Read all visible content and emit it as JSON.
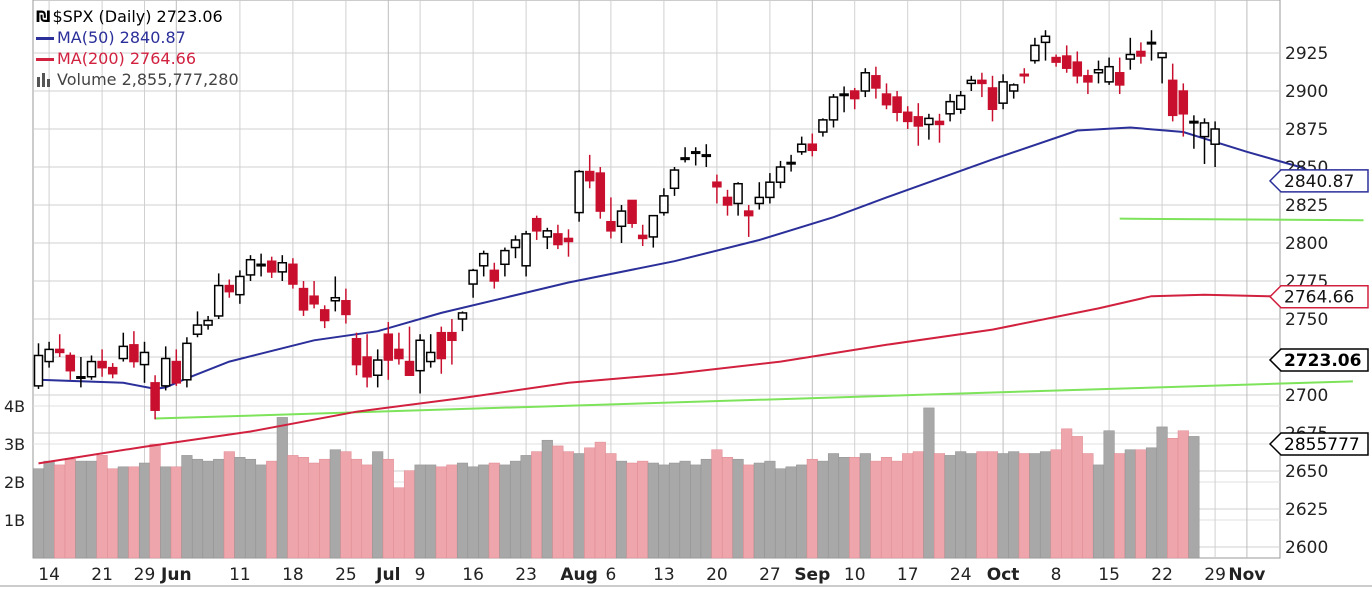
{
  "legend": {
    "symbol_line": "$SPX (Daily) 2723.06",
    "ma50_line": "MA(50) 2840.87",
    "ma200_line": "MA(200) 2764.66",
    "volume_line": "Volume 2,855,777,280"
  },
  "colors": {
    "up_candle": "#000000",
    "down_candle": "#c8102e",
    "ma50": "#2b2f99",
    "ma200": "#d1213f",
    "volume_up": "#a8a8a8",
    "volume_down": "#eea5ab",
    "trendline": "#7de35a",
    "grid": "#d0d0d0"
  },
  "chart_data": {
    "type": "candlestick",
    "title": "$SPX (Daily) 2723.06",
    "price_ylim": [
      2600,
      2940
    ],
    "price_ticks": [
      2600,
      2625,
      2650,
      2675,
      2700,
      2725,
      2750,
      2775,
      2800,
      2825,
      2850,
      2875,
      2900,
      2925
    ],
    "volume_ticks": [
      {
        "label": "1B",
        "value": 1
      },
      {
        "label": "2B",
        "value": 2
      },
      {
        "label": "3B",
        "value": 3
      },
      {
        "label": "4B",
        "value": 4
      }
    ],
    "x_tick_labels": [
      {
        "label": "14",
        "idx": 1,
        "bold": false
      },
      {
        "label": "21",
        "idx": 6,
        "bold": false
      },
      {
        "label": "29",
        "idx": 10,
        "bold": false
      },
      {
        "label": "Jun",
        "idx": 13,
        "bold": true
      },
      {
        "label": "11",
        "idx": 19,
        "bold": false
      },
      {
        "label": "18",
        "idx": 24,
        "bold": false
      },
      {
        "label": "25",
        "idx": 29,
        "bold": false
      },
      {
        "label": "Jul",
        "idx": 33,
        "bold": true
      },
      {
        "label": "9",
        "idx": 36,
        "bold": false
      },
      {
        "label": "16",
        "idx": 41,
        "bold": false
      },
      {
        "label": "23",
        "idx": 46,
        "bold": false
      },
      {
        "label": "Aug",
        "idx": 51,
        "bold": true
      },
      {
        "label": "6",
        "idx": 54,
        "bold": false
      },
      {
        "label": "13",
        "idx": 59,
        "bold": false
      },
      {
        "label": "20",
        "idx": 64,
        "bold": false
      },
      {
        "label": "27",
        "idx": 69,
        "bold": false
      },
      {
        "label": "Sep",
        "idx": 73,
        "bold": true
      },
      {
        "label": "10",
        "idx": 77,
        "bold": false
      },
      {
        "label": "17",
        "idx": 82,
        "bold": false
      },
      {
        "label": "24",
        "idx": 87,
        "bold": false
      },
      {
        "label": "Oct",
        "idx": 91,
        "bold": true
      },
      {
        "label": "8",
        "idx": 96,
        "bold": false
      },
      {
        "label": "15",
        "idx": 101,
        "bold": false
      },
      {
        "label": "22",
        "idx": 106,
        "bold": false
      },
      {
        "label": "29",
        "idx": 111,
        "bold": false
      },
      {
        "label": "Nov",
        "idx": 114,
        "bold": true
      }
    ],
    "last_values": [
      {
        "label": "2840.87",
        "value": 2840.87,
        "color": "#2b2f99",
        "bold": false
      },
      {
        "label": "2764.66",
        "value": 2764.66,
        "color": "#d1213f",
        "bold": false
      },
      {
        "label": "2723.06",
        "value": 2723.06,
        "color": "#000000",
        "bold": true
      },
      {
        "label": "2855777",
        "value": 2855777,
        "color": "#000000",
        "bold": false
      }
    ],
    "ohlc": [
      [
        2706,
        2734,
        2704,
        2726
      ],
      [
        2722,
        2735,
        2718,
        2730
      ],
      [
        2730,
        2740,
        2725,
        2728
      ],
      [
        2726,
        2728,
        2710,
        2716
      ],
      [
        2712,
        2725,
        2705,
        2712
      ],
      [
        2712,
        2726,
        2710,
        2722
      ],
      [
        2722,
        2730,
        2712,
        2718
      ],
      [
        2718,
        2721,
        2711,
        2714
      ],
      [
        2724,
        2741,
        2722,
        2732
      ],
      [
        2733,
        2742,
        2718,
        2722
      ],
      [
        2720,
        2735,
        2708,
        2728
      ],
      [
        2708,
        2713,
        2684,
        2690
      ],
      [
        2706,
        2732,
        2703,
        2724
      ],
      [
        2722,
        2730,
        2706,
        2708
      ],
      [
        2710,
        2738,
        2705,
        2734
      ],
      [
        2740,
        2755,
        2738,
        2746
      ],
      [
        2746,
        2752,
        2743,
        2749
      ],
      [
        2752,
        2780,
        2750,
        2772
      ],
      [
        2772,
        2776,
        2764,
        2768
      ],
      [
        2766,
        2782,
        2760,
        2778
      ],
      [
        2779,
        2792,
        2775,
        2789
      ],
      [
        2785,
        2793,
        2778,
        2786
      ],
      [
        2788,
        2791,
        2777,
        2781
      ],
      [
        2781,
        2792,
        2775,
        2787
      ],
      [
        2786,
        2790,
        2770,
        2773
      ],
      [
        2770,
        2775,
        2752,
        2756
      ],
      [
        2765,
        2775,
        2757,
        2760
      ],
      [
        2756,
        2759,
        2744,
        2749
      ],
      [
        2762,
        2778,
        2755,
        2764
      ],
      [
        2762,
        2770,
        2747,
        2753
      ],
      [
        2737,
        2741,
        2713,
        2720
      ],
      [
        2725,
        2740,
        2705,
        2712
      ],
      [
        2713,
        2730,
        2705,
        2723
      ],
      [
        2740,
        2748,
        2710,
        2723
      ],
      [
        2730,
        2741,
        2720,
        2724
      ],
      [
        2722,
        2745,
        2713,
        2713
      ],
      [
        2716,
        2740,
        2701,
        2736
      ],
      [
        2722,
        2740,
        2718,
        2728
      ],
      [
        2741,
        2745,
        2714,
        2724
      ],
      [
        2741,
        2750,
        2720,
        2736
      ],
      [
        2750,
        2755,
        2742,
        2754
      ],
      [
        2773,
        2783,
        2764,
        2782
      ],
      [
        2785,
        2795,
        2778,
        2793
      ],
      [
        2782,
        2787,
        2770,
        2775
      ],
      [
        2786,
        2797,
        2778,
        2795
      ],
      [
        2797,
        2805,
        2790,
        2802
      ],
      [
        2785,
        2808,
        2778,
        2806
      ],
      [
        2816,
        2818,
        2802,
        2808
      ],
      [
        2804,
        2810,
        2796,
        2808
      ],
      [
        2806,
        2812,
        2796,
        2799
      ],
      [
        2803,
        2809,
        2791,
        2801
      ],
      [
        2820,
        2848,
        2814,
        2847
      ],
      [
        2847,
        2858,
        2836,
        2841
      ],
      [
        2846,
        2850,
        2816,
        2821
      ],
      [
        2814,
        2830,
        2803,
        2808
      ],
      [
        2811,
        2825,
        2800,
        2821
      ],
      [
        2828,
        2828,
        2810,
        2813
      ],
      [
        2805,
        2812,
        2798,
        2803
      ],
      [
        2804,
        2818,
        2797,
        2818
      ],
      [
        2820,
        2836,
        2818,
        2831
      ],
      [
        2836,
        2850,
        2831,
        2848
      ],
      [
        2855,
        2863,
        2853,
        2856
      ],
      [
        2859,
        2863,
        2851,
        2860
      ],
      [
        2857,
        2865,
        2850,
        2858
      ],
      [
        2840,
        2845,
        2826,
        2837
      ],
      [
        2830,
        2835,
        2818,
        2825
      ],
      [
        2826,
        2840,
        2818,
        2839
      ],
      [
        2821,
        2825,
        2804,
        2818
      ],
      [
        2826,
        2840,
        2822,
        2830
      ],
      [
        2830,
        2846,
        2826,
        2840
      ],
      [
        2840,
        2854,
        2836,
        2850
      ],
      [
        2853,
        2858,
        2847,
        2853
      ],
      [
        2860,
        2870,
        2858,
        2865
      ],
      [
        2865,
        2872,
        2857,
        2861
      ],
      [
        2873,
        2882,
        2870,
        2881
      ],
      [
        2881,
        2898,
        2876,
        2896
      ],
      [
        2898,
        2903,
        2886,
        2898
      ],
      [
        2900,
        2902,
        2888,
        2895
      ],
      [
        2900,
        2915,
        2896,
        2912
      ],
      [
        2910,
        2916,
        2895,
        2902
      ],
      [
        2898,
        2905,
        2888,
        2891
      ],
      [
        2896,
        2900,
        2880,
        2886
      ],
      [
        2886,
        2890,
        2875,
        2880
      ],
      [
        2883,
        2892,
        2864,
        2877
      ],
      [
        2878,
        2885,
        2868,
        2882
      ],
      [
        2880,
        2885,
        2866,
        2878
      ],
      [
        2885,
        2898,
        2880,
        2893
      ],
      [
        2888,
        2900,
        2885,
        2897
      ],
      [
        2905,
        2910,
        2900,
        2907
      ],
      [
        2907,
        2912,
        2896,
        2905
      ],
      [
        2902,
        2910,
        2880,
        2888
      ],
      [
        2892,
        2911,
        2888,
        2906
      ],
      [
        2900,
        2905,
        2895,
        2904
      ],
      [
        2911,
        2915,
        2905,
        2910
      ],
      [
        2920,
        2935,
        2918,
        2930
      ],
      [
        2932,
        2940,
        2920,
        2936
      ],
      [
        2922,
        2924,
        2916,
        2919
      ],
      [
        2923,
        2930,
        2912,
        2915
      ],
      [
        2919,
        2926,
        2905,
        2910
      ],
      [
        2910,
        2914,
        2898,
        2906
      ],
      [
        2912,
        2920,
        2905,
        2914
      ],
      [
        2906,
        2922,
        2904,
        2916
      ],
      [
        2912,
        2922,
        2898,
        2904
      ],
      [
        2921,
        2935,
        2914,
        2924
      ],
      [
        2926,
        2932,
        2918,
        2923
      ],
      [
        2932,
        2940,
        2920,
        2932
      ],
      [
        2922,
        2924,
        2905,
        2925
      ],
      [
        2907,
        2918,
        2880,
        2884
      ],
      [
        2900,
        2905,
        2870,
        2885
      ],
      [
        2880,
        2884,
        2862,
        2880
      ],
      [
        2870,
        2882,
        2852,
        2879
      ],
      [
        2865,
        2880,
        2850,
        2875
      ]
    ],
    "volume_billions": [
      2.35,
      2.55,
      2.45,
      2.6,
      2.55,
      2.55,
      2.7,
      2.35,
      2.4,
      2.4,
      2.5,
      3.0,
      2.4,
      2.4,
      2.7,
      2.6,
      2.55,
      2.6,
      2.8,
      2.65,
      2.6,
      2.45,
      2.55,
      3.7,
      2.7,
      2.65,
      2.5,
      2.6,
      2.85,
      2.8,
      2.6,
      2.45,
      2.8,
      2.6,
      1.85,
      2.3,
      2.45,
      2.45,
      2.4,
      2.45,
      2.5,
      2.4,
      2.45,
      2.5,
      2.45,
      2.55,
      2.7,
      2.8,
      3.1,
      2.95,
      2.8,
      2.75,
      2.9,
      3.05,
      2.75,
      2.55,
      2.5,
      2.55,
      2.5,
      2.45,
      2.5,
      2.55,
      2.45,
      2.6,
      2.85,
      2.65,
      2.6,
      2.45,
      2.5,
      2.55,
      2.35,
      2.4,
      2.45,
      2.6,
      2.55,
      2.75,
      2.65,
      2.65,
      2.75,
      2.55,
      2.65,
      2.55,
      2.75,
      2.8,
      3.95,
      2.75,
      2.7,
      2.8,
      2.75,
      2.8,
      2.8,
      2.75,
      2.8,
      2.75,
      2.75,
      2.8,
      2.85,
      3.4,
      3.2,
      2.75,
      2.45,
      3.35,
      2.75,
      2.85,
      2.85,
      2.9,
      3.45,
      3.15,
      3.35,
      3.2
    ],
    "ma50_points": [
      [
        0,
        2710
      ],
      [
        8,
        2708
      ],
      [
        11,
        2704
      ],
      [
        12,
        2705
      ],
      [
        14,
        2711
      ],
      [
        18,
        2722
      ],
      [
        26,
        2736
      ],
      [
        32,
        2742
      ],
      [
        38,
        2754
      ],
      [
        50,
        2774
      ],
      [
        60,
        2788
      ],
      [
        68,
        2802
      ],
      [
        75,
        2817
      ],
      [
        80,
        2830
      ],
      [
        90,
        2855
      ],
      [
        98,
        2874
      ],
      [
        103,
        2876
      ],
      [
        108,
        2873
      ],
      [
        114,
        2860
      ],
      [
        119,
        2850
      ],
      [
        122,
        2840.87
      ]
    ],
    "ma200_points": [
      [
        0,
        2655
      ],
      [
        10,
        2666
      ],
      [
        20,
        2676
      ],
      [
        30,
        2689
      ],
      [
        40,
        2698
      ],
      [
        50,
        2708
      ],
      [
        60,
        2714
      ],
      [
        70,
        2722
      ],
      [
        80,
        2733
      ],
      [
        90,
        2743
      ],
      [
        100,
        2757
      ],
      [
        105,
        2765
      ],
      [
        110,
        2766
      ],
      [
        116,
        2765
      ],
      [
        122,
        2764.66
      ]
    ],
    "trendlines": [
      {
        "from": [
          11,
          2684.5
        ],
        "to": [
          124,
          2709
        ]
      },
      {
        "from": [
          102,
          2816
        ],
        "to": [
          125,
          2815
        ]
      }
    ]
  }
}
